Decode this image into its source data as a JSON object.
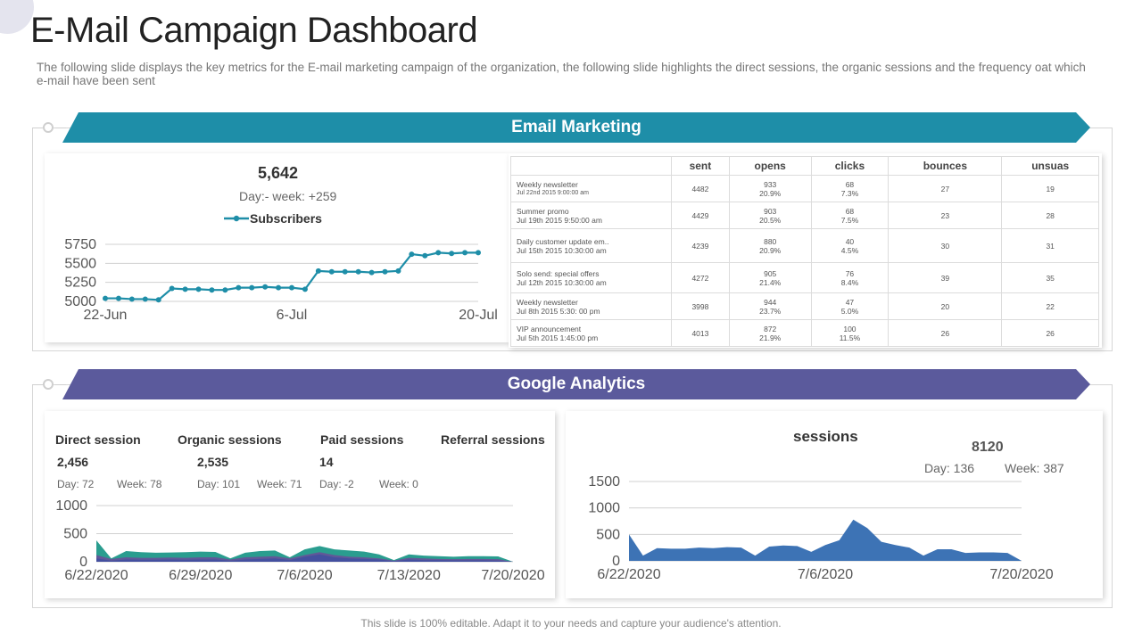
{
  "page": {
    "title": "E-Mail Campaign Dashboard",
    "subtitle": "The following slide displays the key metrics for the E-mail marketing campaign of the organization, the following slide highlights the direct sessions, the organic sessions and the frequency oat which e-mail have been sent",
    "footer": "This slide is 100% editable. Adapt it to your needs and capture your audience's attention."
  },
  "colors": {
    "teal": "#1e8ea8",
    "purple": "#5b5a9c",
    "blue": "#3d73b5",
    "green": "#2a9d8f",
    "violet": "#6b4c9a"
  },
  "email": {
    "banner": "Email Marketing",
    "subscribers": {
      "total": "5,642",
      "delta": "Day:- week: +259",
      "legend": "Subscribers"
    },
    "table": {
      "headers": [
        "sent",
        "opens",
        "clicks",
        "bounces",
        "unsuas"
      ],
      "rows": [
        {
          "name": "Weekly newsletter",
          "date": "Jul 22nd 2015 9:00:00 am",
          "sent": "4482",
          "opens": "933",
          "opens_pct": "20.9%",
          "clicks": "68",
          "clicks_pct": "7.3%",
          "bounces": "27",
          "unsubs": "19"
        },
        {
          "name": "Summer promo",
          "date": "Jul 19th 2015 9:50:00 am",
          "sent": "4429",
          "opens": "903",
          "opens_pct": "20.5%",
          "clicks": "68",
          "clicks_pct": "7.5%",
          "bounces": "23",
          "unsubs": "28"
        },
        {
          "name": "Daily customer update em..",
          "date": "Jul 15th 2015 10:30:00 am",
          "sent": "4239",
          "opens": "880",
          "opens_pct": "20.9%",
          "clicks": "40",
          "clicks_pct": "4.5%",
          "bounces": "30",
          "unsubs": "31"
        },
        {
          "name": "Solo send: special offers",
          "date": "Jul 12th 2015 10:30:00 am",
          "sent": "4272",
          "opens": "905",
          "opens_pct": "21.4%",
          "clicks": "76",
          "clicks_pct": "8.4%",
          "bounces": "39",
          "unsubs": "35"
        },
        {
          "name": "Weekly newsletter",
          "date": "Jul 8th 2015 5:30: 00 pm",
          "sent": "3998",
          "opens": "944",
          "opens_pct": "23.7%",
          "clicks": "47",
          "clicks_pct": "5.0%",
          "bounces": "20",
          "unsubs": "22"
        },
        {
          "name": "VIP announcement",
          "date": "Jul 5th 2015 1:45:00 pm",
          "sent": "4013",
          "opens": "872",
          "opens_pct": "21.9%",
          "clicks": "100",
          "clicks_pct": "11.5%",
          "bounces": "26",
          "unsubs": "26"
        }
      ]
    }
  },
  "ga": {
    "banner": "Google Analytics",
    "metrics": [
      {
        "label": "Direct session",
        "value": "2,456",
        "day": "Day: 72",
        "week": "Week: 78"
      },
      {
        "label": "Organic sessions",
        "value": "2,535",
        "day": "Day: 101",
        "week": "Week: 71"
      },
      {
        "label": "Paid sessions",
        "value": "14",
        "day": "Day: -2",
        "week": "Week: 0"
      },
      {
        "label": "Referral sessions"
      }
    ],
    "sessions": {
      "title": "sessions",
      "total": "8120",
      "day": "Day: 136",
      "week": "Week: 387"
    }
  },
  "chart_data": [
    {
      "id": "subscribers",
      "type": "line",
      "title": "Subscribers",
      "x": [
        "22-Jun",
        "23-Jun",
        "24-Jun",
        "25-Jun",
        "26-Jun",
        "27-Jun",
        "28-Jun",
        "29-Jun",
        "30-Jun",
        "1-Jul",
        "2-Jul",
        "3-Jul",
        "4-Jul",
        "5-Jul",
        "6-Jul",
        "7-Jul",
        "8-Jul",
        "9-Jul",
        "10-Jul",
        "11-Jul",
        "12-Jul",
        "13-Jul",
        "14-Jul",
        "15-Jul",
        "16-Jul",
        "17-Jul",
        "18-Jul",
        "19-Jul",
        "20-Jul"
      ],
      "xticks": [
        "22-Jun",
        "6-Jul",
        "20-Jul"
      ],
      "series": [
        {
          "name": "Subscribers",
          "values": [
            5040,
            5040,
            5030,
            5030,
            5020,
            5170,
            5160,
            5160,
            5150,
            5150,
            5180,
            5180,
            5190,
            5180,
            5180,
            5160,
            5400,
            5390,
            5390,
            5390,
            5380,
            5390,
            5400,
            5620,
            5600,
            5640,
            5630,
            5640,
            5640
          ]
        }
      ],
      "ylim": [
        5000,
        5750
      ],
      "yticks": [
        5000,
        5250,
        5500,
        5750
      ]
    },
    {
      "id": "ga_sessions",
      "type": "area",
      "x": [
        "6/22/2020",
        "6/23/2020",
        "6/24/2020",
        "6/25/2020",
        "6/26/2020",
        "6/27/2020",
        "6/28/2020",
        "6/29/2020",
        "6/30/2020",
        "7/1/2020",
        "7/2/2020",
        "7/3/2020",
        "7/4/2020",
        "7/5/2020",
        "7/6/2020",
        "7/7/2020",
        "7/8/2020",
        "7/9/2020",
        "7/10/2020",
        "7/11/2020",
        "7/12/2020",
        "7/13/2020",
        "7/14/2020",
        "7/15/2020",
        "7/16/2020",
        "7/17/2020",
        "7/18/2020",
        "7/19/2020",
        "7/20/2020"
      ],
      "xticks": [
        "6/22/2020",
        "6/29/2020",
        "7/6/2020",
        "7/13/2020",
        "7/20/2020"
      ],
      "series": [
        {
          "name": "Direct session",
          "values": [
            380,
            60,
            190,
            170,
            160,
            165,
            170,
            180,
            175,
            60,
            160,
            190,
            200,
            80,
            220,
            280,
            220,
            200,
            180,
            130,
            30,
            130,
            110,
            100,
            90,
            100,
            100,
            95,
            0
          ]
        },
        {
          "name": "Organic sessions",
          "values": [
            120,
            50,
            80,
            70,
            70,
            75,
            70,
            80,
            80,
            40,
            80,
            90,
            100,
            60,
            120,
            170,
            120,
            90,
            80,
            60,
            20,
            70,
            60,
            50,
            45,
            50,
            50,
            45,
            0
          ]
        },
        {
          "name": "Paid sessions",
          "values": [
            60,
            20,
            40,
            35,
            35,
            40,
            35,
            40,
            40,
            20,
            40,
            50,
            60,
            30,
            90,
            130,
            80,
            60,
            50,
            40,
            10,
            40,
            30,
            30,
            25,
            25,
            25,
            20,
            0
          ]
        }
      ],
      "ylim": [
        0,
        1000
      ],
      "yticks": [
        0,
        500,
        1000
      ]
    },
    {
      "id": "sessions_total",
      "type": "area",
      "title": "sessions",
      "x": [
        "6/22/2020",
        "6/23/2020",
        "6/24/2020",
        "6/25/2020",
        "6/26/2020",
        "6/27/2020",
        "6/28/2020",
        "6/29/2020",
        "6/30/2020",
        "7/1/2020",
        "7/2/2020",
        "7/3/2020",
        "7/4/2020",
        "7/5/2020",
        "7/6/2020",
        "7/7/2020",
        "7/8/2020",
        "7/9/2020",
        "7/10/2020",
        "7/11/2020",
        "7/12/2020",
        "7/13/2020",
        "7/14/2020",
        "7/15/2020",
        "7/16/2020",
        "7/17/2020",
        "7/18/2020",
        "7/19/2020",
        "7/20/2020"
      ],
      "xticks": [
        "6/22/2020",
        "7/6/2020",
        "7/20/2020"
      ],
      "series": [
        {
          "name": "sessions",
          "values": [
            500,
            100,
            240,
            230,
            230,
            250,
            240,
            260,
            250,
            100,
            270,
            290,
            280,
            170,
            300,
            390,
            780,
            620,
            360,
            300,
            250,
            100,
            220,
            220,
            150,
            160,
            160,
            150,
            0
          ]
        }
      ],
      "ylim": [
        0,
        1500
      ],
      "yticks": [
        0,
        500,
        1000,
        1500
      ]
    }
  ]
}
